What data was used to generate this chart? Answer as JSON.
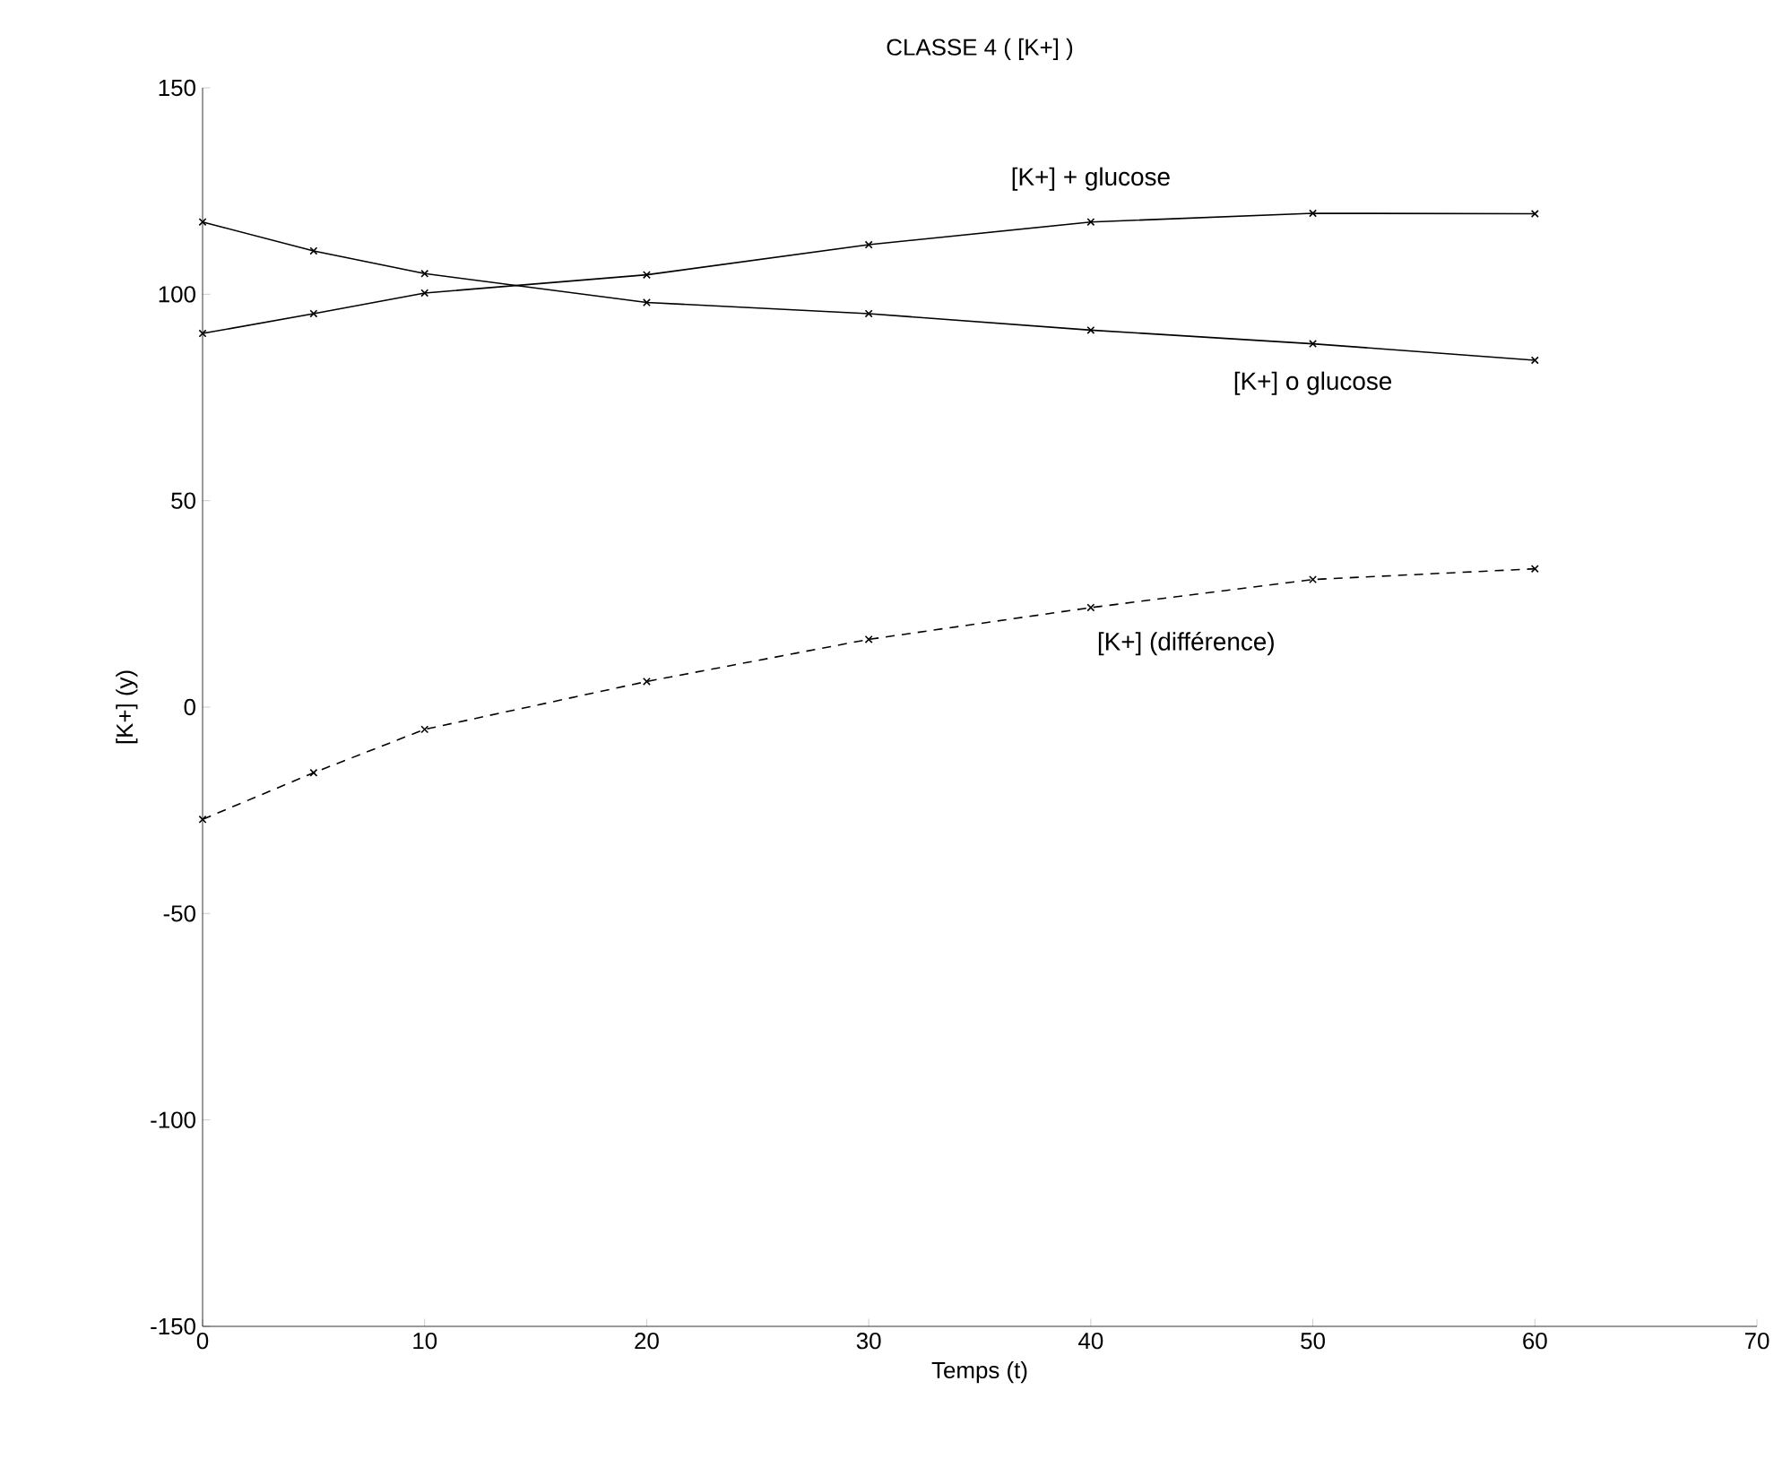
{
  "chart_data": {
    "type": "line",
    "title": "CLASSE 4 ( [K+] )",
    "xlabel": "Temps (t)",
    "ylabel": "[K+] (y)",
    "x": [
      0,
      5,
      10,
      20,
      30,
      40,
      50,
      60
    ],
    "series": [
      {
        "name": "[K+] + glucose",
        "color": "#000000",
        "values": [
          90.5,
          95.3,
          100.3,
          104.7,
          112,
          117.5,
          119.6,
          119.5
        ]
      },
      {
        "name": "[K+] o glucose",
        "color": "#000000",
        "values": [
          117.5,
          110.5,
          105,
          98,
          95.3,
          91.3,
          88,
          84
        ]
      },
      {
        "name": "[K+] (différence)",
        "color": "#000000",
        "line_style": "dashed",
        "values": [
          -27.2,
          -15.9,
          -5.4,
          6.2,
          16.4,
          24.1,
          30.9,
          33.5
        ]
      }
    ],
    "xlim": [
      0,
      70
    ],
    "ylim": [
      -150,
      150
    ],
    "xticks": [
      0,
      10,
      20,
      30,
      40,
      50,
      60,
      70
    ],
    "yticks": [
      -150,
      -100,
      -50,
      0,
      50,
      100,
      150
    ],
    "grid": false,
    "legend": false,
    "marker": "cross",
    "line_style": "solid"
  }
}
